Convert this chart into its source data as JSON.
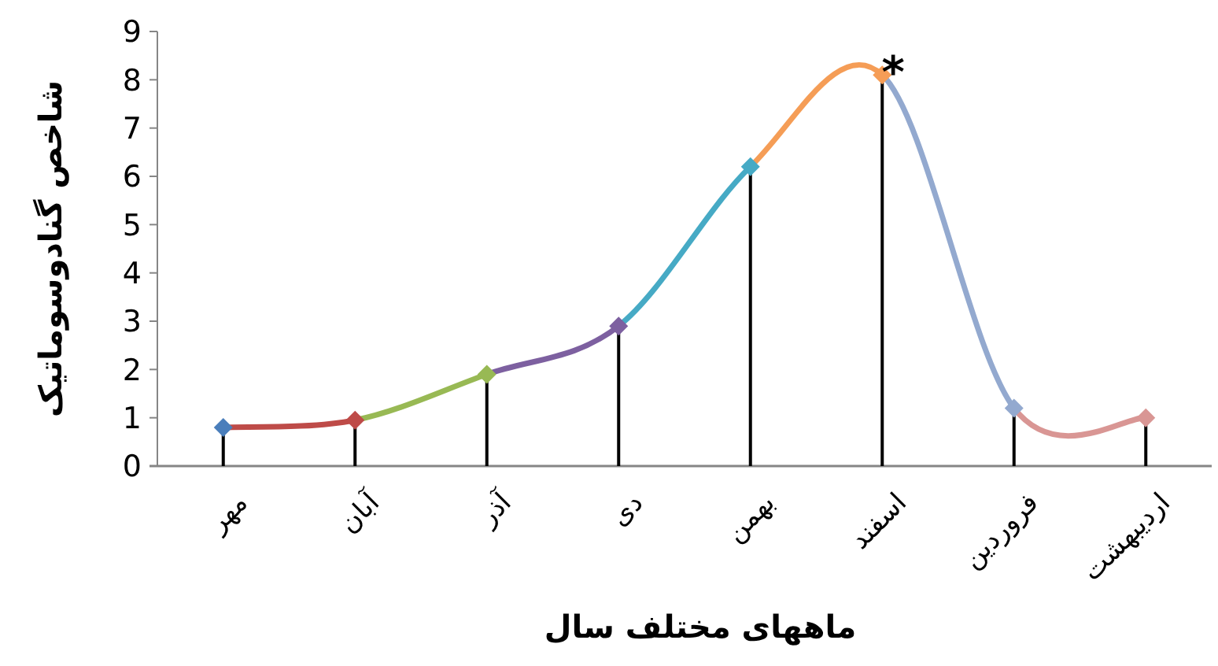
{
  "chart_data": {
    "type": "line",
    "xlabel": "ماههای مختلف سال",
    "ylabel": "شاخص گنادوسوماتیک",
    "categories": [
      "مهر",
      "آبان",
      "آذر",
      "دی",
      "بهمن",
      "اسفند",
      "فروردین",
      "اردیبهشت"
    ],
    "values": [
      0.8,
      0.95,
      1.9,
      2.9,
      6.2,
      8.1,
      1.2,
      1.0
    ],
    "colors": [
      "#4a7ebb",
      "#be4b48",
      "#98b954",
      "#7d60a0",
      "#46aac5",
      "#f59d56",
      "#93a9cf",
      "#d99694"
    ],
    "errors": [
      [
        0,
        0.8
      ],
      [
        0,
        0.95
      ],
      [
        0,
        1.9
      ],
      [
        0,
        2.9
      ],
      [
        0,
        6.2
      ],
      [
        0,
        8.1
      ],
      [
        0,
        1.2
      ],
      [
        0,
        1.0
      ]
    ],
    "annotations": [
      "*"
    ],
    "ylim": [
      0,
      9
    ],
    "yticks": [
      0,
      1,
      2,
      3,
      4,
      5,
      6,
      7,
      8,
      9
    ],
    "grid": false,
    "legend": false,
    "marker": "diamond",
    "line_style": "solid"
  }
}
